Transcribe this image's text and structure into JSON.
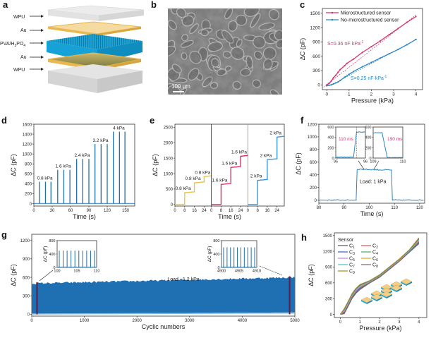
{
  "figure": {
    "panel_letters": [
      "a",
      "b",
      "c",
      "d",
      "e",
      "f",
      "g",
      "h"
    ]
  },
  "panel_a": {
    "layers": [
      "WPU",
      "Au",
      "PVA/H3PO4",
      "Au",
      "WPU"
    ],
    "layer_labels": {
      "wpu_top": "WPU",
      "au_top": "Au",
      "pva_main": "PVA/H",
      "pva_sub1": "3",
      "pva_mid": "PO",
      "pva_sub2": "4",
      "au_bottom": "Au",
      "wpu_bottom": "WPU"
    },
    "colors": {
      "wpu": "#d9d9d9",
      "au": "#f2c96a",
      "pva": "#1aa3d4"
    }
  },
  "panel_b": {
    "scale_bar": "100 μm",
    "description": "SEM micrograph"
  },
  "chart_data": [
    {
      "panel": "c",
      "type": "line",
      "xlabel": "Pressure (kPa)",
      "ylabel": "ΔC (pF)",
      "xlim": [
        -0.2,
        4.3
      ],
      "ylim": [
        -100,
        1600
      ],
      "xticks": [
        0,
        1,
        2,
        3,
        4
      ],
      "yticks": [
        0,
        300,
        600,
        900,
        1200,
        1500
      ],
      "legend_position": "top-left",
      "series": [
        {
          "name": "Microstructured sensor",
          "color": "#d6336c",
          "x": [
            0,
            0.1,
            0.2,
            0.3,
            0.4,
            0.5,
            0.6,
            0.8,
            0.9,
            1.2,
            1.6,
            2.0,
            2.4,
            2.8,
            3.2,
            3.6,
            4.0
          ],
          "y": [
            0,
            30,
            80,
            150,
            200,
            260,
            320,
            400,
            450,
            540,
            680,
            800,
            920,
            1050,
            1180,
            1310,
            1430
          ]
        },
        {
          "name": "No-microstructured sensor",
          "color": "#2e86c1",
          "x": [
            0,
            0.1,
            0.2,
            0.3,
            0.4,
            0.5,
            0.6,
            0.8,
            1.0,
            1.2,
            1.6,
            2.0,
            2.4,
            2.8,
            3.2,
            3.6,
            4.0
          ],
          "y": [
            -20,
            -10,
            0,
            20,
            40,
            60,
            90,
            160,
            220,
            280,
            380,
            470,
            560,
            650,
            740,
            840,
            950
          ]
        }
      ],
      "annotations": [
        {
          "text": "S=0.36 nF·kPa",
          "sup": "-1",
          "color": "#d6336c"
        },
        {
          "text": "S=0.25 nF·kPa",
          "sup": "-1",
          "color": "#2e86c1"
        }
      ]
    },
    {
      "panel": "d",
      "type": "line",
      "xlabel": "Time (s)",
      "ylabel": "ΔC (pF)",
      "xlim": [
        0,
        165
      ],
      "ylim": [
        -50,
        1600
      ],
      "xticks": [
        0,
        30,
        60,
        90,
        120,
        150
      ],
      "yticks": [
        0,
        200,
        400,
        600,
        800,
        1000,
        1200,
        1400,
        1600
      ],
      "color": "#1f6fa8",
      "pulses": [
        {
          "t": 9,
          "v": 440
        },
        {
          "t": 19,
          "v": 440
        },
        {
          "t": 28,
          "v": 440
        },
        {
          "t": 39,
          "v": 680
        },
        {
          "t": 49,
          "v": 680
        },
        {
          "t": 59,
          "v": 680
        },
        {
          "t": 70,
          "v": 900
        },
        {
          "t": 80,
          "v": 900
        },
        {
          "t": 90,
          "v": 900
        },
        {
          "t": 100,
          "v": 1200
        },
        {
          "t": 110,
          "v": 1200
        },
        {
          "t": 120,
          "v": 1200
        },
        {
          "t": 130,
          "v": 1450
        },
        {
          "t": 140,
          "v": 1450
        },
        {
          "t": 149,
          "v": 1450
        }
      ],
      "annotations": [
        "0.8 kPa",
        "1.6 kPa",
        "2.4 kPa",
        "3.2 kPa",
        "4 kPa"
      ]
    },
    {
      "panel": "e",
      "type": "line",
      "xlabel": "Time (s)",
      "ylabel": "ΔC (pF)",
      "ylim": [
        -50,
        2600
      ],
      "yticks": [
        0,
        500,
        1000,
        1500,
        2000,
        2500
      ],
      "segment_xticks": [
        0,
        8,
        16,
        24
      ],
      "segments": [
        {
          "color": "#e8c547",
          "steps": [
            {
              "t": 0,
              "v": 0
            },
            {
              "t": 8,
              "v": 380
            },
            {
              "t": 16,
              "v": 700
            },
            {
              "t": 24,
              "v": 900
            },
            {
              "t": 30,
              "v": 940
            }
          ],
          "labels": [
            "0.8 kPa",
            "0.8 kPa",
            "0.8 kPa"
          ]
        },
        {
          "color": "#d6336c",
          "steps": [
            {
              "t": 0,
              "v": 0
            },
            {
              "t": 8,
              "v": 650
            },
            {
              "t": 16,
              "v": 1200
            },
            {
              "t": 24,
              "v": 1560
            },
            {
              "t": 30,
              "v": 1600
            }
          ],
          "labels": [
            "1.6 kPa",
            "1.6 kPa",
            "1.6 kPa"
          ]
        },
        {
          "color": "#3a9ad9",
          "steps": [
            {
              "t": 0,
              "v": 0
            },
            {
              "t": 8,
              "v": 780
            },
            {
              "t": 16,
              "v": 1450
            },
            {
              "t": 24,
              "v": 2180
            },
            {
              "t": 30,
              "v": 2250
            }
          ],
          "labels": [
            "2 kPa",
            "2 kPa",
            "2 kPa"
          ]
        }
      ]
    },
    {
      "panel": "f",
      "type": "line",
      "xlabel": "Time (s)",
      "ylabel": "ΔC (pF)",
      "xlim": [
        80,
        122
      ],
      "ylim": [
        -50,
        1200
      ],
      "xticks": [
        80,
        90,
        100,
        110,
        120
      ],
      "yticks": [
        0,
        200,
        400,
        600,
        800,
        1000,
        1200
      ],
      "color": "#2e86c1",
      "on_time": 95,
      "off_time": 109,
      "level": 490,
      "annotation": "Load: 1 kPa",
      "insets": [
        {
          "xlim": [
            95,
            96
          ],
          "xticks": [
            95,
            96
          ],
          "ylim": [
            0,
            600
          ],
          "yticks": [
            0,
            200,
            400,
            600
          ],
          "label": "110 ms",
          "label_color": "#d6336c"
        },
        {
          "xlim": [
            109,
            110
          ],
          "xticks": [
            109,
            110
          ],
          "xticktexts": [
            "109",
            "110"
          ],
          "ylim": [
            0,
            600
          ],
          "yticks": [
            0,
            200,
            400,
            600
          ],
          "label": "190 ms",
          "label_color": "#d6336c"
        }
      ]
    },
    {
      "panel": "g",
      "type": "area",
      "xlabel": "Cyclic numbers",
      "ylabel": "ΔC (pF)",
      "xlim": [
        0,
        5000
      ],
      "ylim": [
        -30,
        1300
      ],
      "xticks": [
        0,
        1000,
        2000,
        3000,
        4000,
        5000
      ],
      "yticks": [
        0,
        300,
        600,
        900,
        1200
      ],
      "color": "#1f6fb3",
      "envelope_start": 500,
      "envelope_end": 600,
      "annotation": "Load ~1.2 kPa",
      "highlight_x": [
        100,
        4900
      ],
      "highlight_color": "#5a1f4a",
      "insets": [
        {
          "xlim": [
            100,
            110
          ],
          "xticks": [
            100,
            105,
            110
          ],
          "ylim": [
            0,
            800
          ],
          "yticks": [
            0,
            400,
            800
          ],
          "ylabel": "ΔC (pF)",
          "peaks": 10,
          "peak_value": 500
        },
        {
          "xlim": [
            4900,
            4910
          ],
          "xticks": [
            4900,
            4905,
            4910
          ],
          "ylim": [
            0,
            800
          ],
          "yticks": [
            0,
            400,
            800
          ],
          "ylabel": "ΔC (pF)",
          "peaks": 10,
          "peak_value": 600
        }
      ]
    },
    {
      "panel": "h",
      "type": "line",
      "xlabel": "Pressure (kPa)",
      "ylabel": "ΔC (pF)",
      "xlim": [
        -0.3,
        4.4
      ],
      "ylim": [
        -60,
        1550
      ],
      "xticks": [
        0,
        1,
        2,
        3,
        4
      ],
      "yticks": [
        0,
        300,
        600,
        900,
        1200,
        1500
      ],
      "legend_title": "Sensor",
      "legend_position": "top-left",
      "series": [
        {
          "name": "C1",
          "color": "#555555"
        },
        {
          "name": "C2",
          "color": "#e05050"
        },
        {
          "name": "C3",
          "color": "#3c5fc0"
        },
        {
          "name": "C4",
          "color": "#3aaa6a"
        },
        {
          "name": "C5",
          "color": "#c080e0"
        },
        {
          "name": "C6",
          "color": "#e0a020"
        },
        {
          "name": "C7",
          "color": "#40c0d0"
        },
        {
          "name": "C8",
          "color": "#806070"
        },
        {
          "name": "C9",
          "color": "#a09020"
        }
      ],
      "x": [
        0,
        0.2,
        0.4,
        0.6,
        0.8,
        1.0,
        1.5,
        2.0,
        2.5,
        3.0,
        3.5,
        4.0
      ],
      "base_y": [
        0,
        60,
        200,
        350,
        450,
        520,
        620,
        730,
        880,
        1030,
        1200,
        1400
      ]
    }
  ]
}
